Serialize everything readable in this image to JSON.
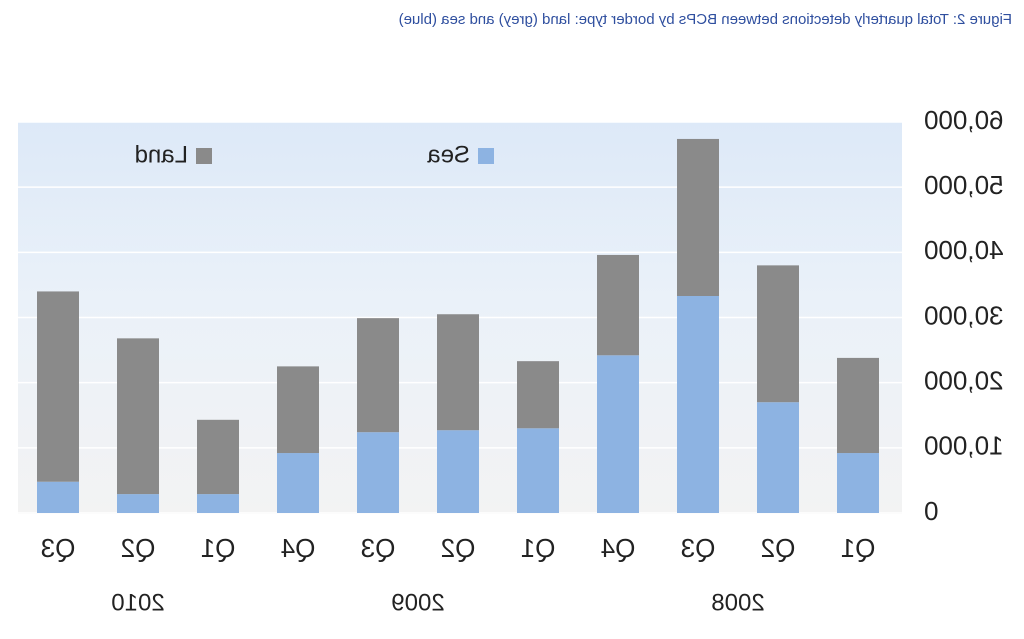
{
  "chart_data": {
    "type": "stacked_bar",
    "title": "Figure 2: Total quarterly detections between BCPs by border type: land (grey) and sea (blue)",
    "categories": [
      "Q1",
      "Q2",
      "Q3",
      "Q4",
      "Q1",
      "Q2",
      "Q3",
      "Q4",
      "Q1",
      "Q2",
      "Q3"
    ],
    "category_years": [
      "2008",
      "2008",
      "2008",
      "2008",
      "2009",
      "2009",
      "2009",
      "2009",
      "2010",
      "2010",
      "2010"
    ],
    "series": [
      {
        "name": "Sea",
        "color": "#8db3e2",
        "values": [
          9200,
          17000,
          33300,
          24200,
          13000,
          12700,
          12400,
          9200,
          2900,
          2900,
          4800
        ]
      },
      {
        "name": "Land",
        "color": "#8a8a8a",
        "values": [
          14600,
          21000,
          24100,
          15400,
          10300,
          17800,
          17500,
          13300,
          11400,
          23900,
          29200
        ]
      }
    ],
    "ylim": [
      0,
      60000
    ],
    "yticks": [
      0,
      {
        "value": 10000,
        "label": "10,000"
      },
      {
        "value": 20000,
        "label": "20,000"
      },
      {
        "value": 30000,
        "label": "30,000"
      },
      {
        "value": 40000,
        "label": "40,000"
      },
      {
        "value": 50000,
        "label": "50,000"
      },
      {
        "value": 60000,
        "label": "60,000"
      }
    ],
    "grid": true,
    "legend": "top",
    "mirrored": true
  }
}
